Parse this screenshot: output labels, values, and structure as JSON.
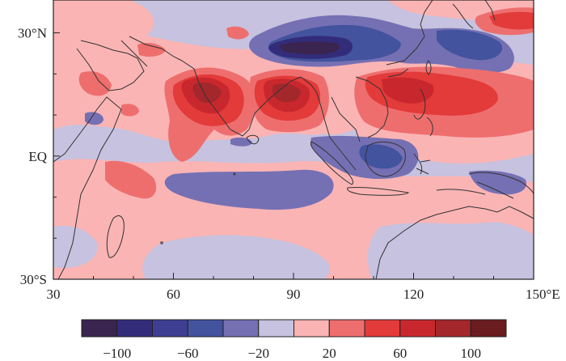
{
  "map": {
    "lon_range": [
      30,
      150
    ],
    "lat_range": [
      -30,
      38
    ],
    "lon_ticks": [
      {
        "value": 30,
        "label": "30"
      },
      {
        "value": 60,
        "label": "60"
      },
      {
        "value": 90,
        "label": "90"
      },
      {
        "value": 120,
        "label": "120"
      },
      {
        "value": 150,
        "label": "150°E"
      }
    ],
    "lat_ticks": [
      {
        "value": 30,
        "label": "30°N"
      },
      {
        "value": 0,
        "label": "EQ"
      },
      {
        "value": -30,
        "label": "30°S"
      }
    ],
    "background_level": "-20 to 20",
    "features": [
      {
        "name": "northern-bay-of-bengal-negative",
        "level": "<-100",
        "lon": 92,
        "lat": 27.5
      },
      {
        "name": "tibet-south-china-negative",
        "level": "-60 to -40",
        "lon": 110,
        "lat": 29
      },
      {
        "name": "western-pacific-negative",
        "level": "-60 to -40",
        "lon": 134,
        "lat": 28
      },
      {
        "name": "arabian-sea-positive",
        "level": "80 to 100",
        "lon": 72,
        "lat": 16
      },
      {
        "name": "bay-of-bengal-positive",
        "level": "80 to 100",
        "lon": 87,
        "lat": 17
      },
      {
        "name": "south-china-sea-positive",
        "level": "60 to 80",
        "lon": 118,
        "lat": 16
      },
      {
        "name": "maritime-continent-negative",
        "level": "-40 to -20",
        "lon": 112,
        "lat": 0
      },
      {
        "name": "southern-indian-ocean-negative",
        "level": "-40 to -20",
        "lon": 85,
        "lat": -6
      }
    ]
  },
  "colorbar": {
    "colors": [
      "#3a2450",
      "#332c7a",
      "#3e3f93",
      "#43539e",
      "#7570b3",
      "#c6c2df",
      "#fbb4b4",
      "#ee6e6e",
      "#e33a3a",
      "#c8282d",
      "#a3272b",
      "#6b1c1f"
    ],
    "ticks": [
      {
        "value": -100,
        "label": "−100"
      },
      {
        "value": -60,
        "label": "−60"
      },
      {
        "value": -20,
        "label": "−20"
      },
      {
        "value": 20,
        "label": "20"
      },
      {
        "value": 60,
        "label": "60"
      },
      {
        "value": 100,
        "label": "100"
      }
    ],
    "range": [
      -120,
      120
    ]
  }
}
